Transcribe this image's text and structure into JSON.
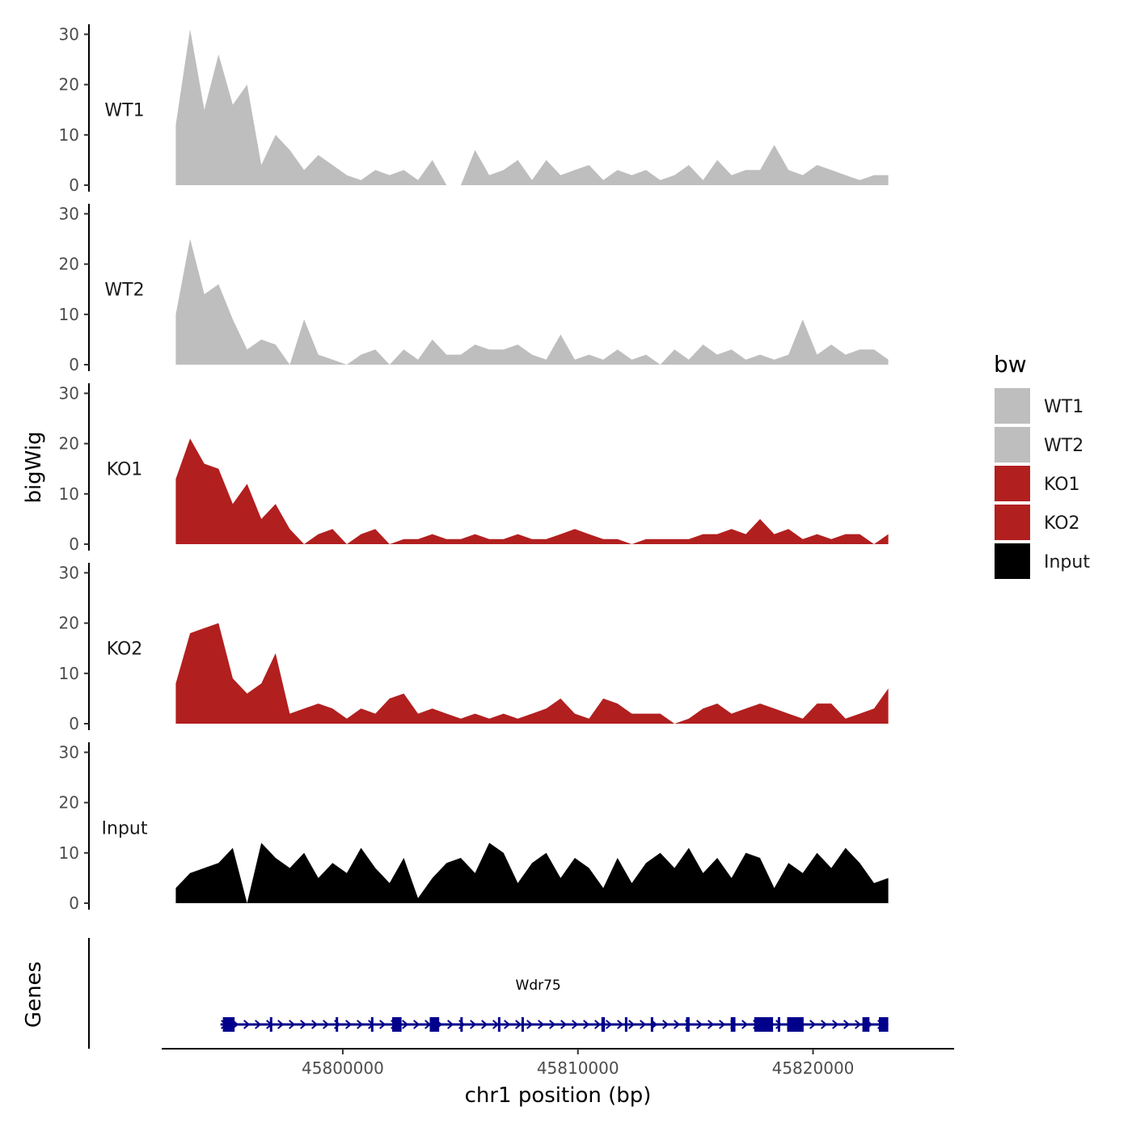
{
  "chart_data": {
    "type": "area",
    "title": "",
    "xlabel": "chr1 position (bp)",
    "ylabel": "bigWig",
    "gene_track_label": "Genes",
    "xlim": [
      45792300,
      45826000
    ],
    "data_xrange": [
      45792900,
      45823200
    ],
    "ylim": [
      0,
      32
    ],
    "y_ticks": [
      0,
      10,
      20,
      30
    ],
    "x_ticks": [
      45800000,
      45810000,
      45820000
    ],
    "x_tick_labels": [
      "45800000",
      "45810000",
      "45820000"
    ],
    "legend": {
      "title": "bw",
      "position": "right",
      "entries": [
        {
          "label": "WT1",
          "color": "#bebebe"
        },
        {
          "label": "WT2",
          "color": "#bebebe"
        },
        {
          "label": "KO1",
          "color": "#b21f1f"
        },
        {
          "label": "KO2",
          "color": "#b21f1f"
        },
        {
          "label": "Input",
          "color": "#000000"
        }
      ]
    },
    "series": [
      {
        "name": "WT1",
        "color": "#bebebe",
        "values": [
          12,
          31,
          15,
          26,
          16,
          20,
          4,
          10,
          7,
          3,
          6,
          4,
          2,
          1,
          3,
          2,
          3,
          1,
          5,
          0,
          0,
          7,
          2,
          3,
          5,
          1,
          5,
          2,
          3,
          4,
          1,
          3,
          2,
          3,
          1,
          2,
          4,
          1,
          5,
          2,
          3,
          3,
          8,
          3,
          2,
          4,
          3,
          2,
          1,
          2,
          2
        ]
      },
      {
        "name": "WT2",
        "color": "#bebebe",
        "values": [
          10,
          25,
          14,
          16,
          9,
          3,
          5,
          4,
          0,
          9,
          2,
          1,
          0,
          2,
          3,
          0,
          3,
          1,
          5,
          2,
          2,
          4,
          3,
          3,
          4,
          2,
          1,
          6,
          1,
          2,
          1,
          3,
          1,
          2,
          0,
          3,
          1,
          4,
          2,
          3,
          1,
          2,
          1,
          2,
          9,
          2,
          4,
          2,
          3,
          3,
          1
        ]
      },
      {
        "name": "KO1",
        "color": "#b21f1f",
        "values": [
          13,
          21,
          16,
          15,
          8,
          12,
          5,
          8,
          3,
          0,
          2,
          3,
          0,
          2,
          3,
          0,
          1,
          1,
          2,
          1,
          1,
          2,
          1,
          1,
          2,
          1,
          1,
          2,
          3,
          2,
          1,
          1,
          0,
          1,
          1,
          1,
          1,
          2,
          2,
          3,
          2,
          5,
          2,
          3,
          1,
          2,
          1,
          2,
          2,
          0,
          2
        ]
      },
      {
        "name": "KO2",
        "color": "#b21f1f",
        "values": [
          8,
          18,
          19,
          20,
          9,
          6,
          8,
          14,
          2,
          3,
          4,
          3,
          1,
          3,
          2,
          5,
          6,
          2,
          3,
          2,
          1,
          2,
          1,
          2,
          1,
          2,
          3,
          5,
          2,
          1,
          5,
          4,
          2,
          2,
          2,
          0,
          1,
          3,
          4,
          2,
          3,
          4,
          3,
          2,
          1,
          4,
          4,
          1,
          2,
          3,
          7
        ]
      },
      {
        "name": "Input",
        "color": "#000000",
        "values": [
          3,
          6,
          7,
          8,
          11,
          0,
          12,
          9,
          7,
          10,
          5,
          8,
          6,
          11,
          7,
          4,
          9,
          1,
          5,
          8,
          9,
          6,
          12,
          10,
          4,
          8,
          10,
          5,
          9,
          7,
          3,
          9,
          4,
          8,
          10,
          7,
          11,
          6,
          9,
          5,
          10,
          9,
          3,
          8,
          6,
          10,
          7,
          11,
          8,
          4,
          5
        ]
      }
    ],
    "gene": {
      "name": "Wdr75",
      "strand": "+",
      "start": 45794800,
      "end": 45823200,
      "color": "#00008b",
      "exons": [
        {
          "start": 45794900,
          "end": 45795400
        },
        {
          "start": 45796900,
          "end": 45797000
        },
        {
          "start": 45799700,
          "end": 45799750
        },
        {
          "start": 45801200,
          "end": 45801250
        },
        {
          "start": 45802100,
          "end": 45802500
        },
        {
          "start": 45803700,
          "end": 45804100
        },
        {
          "start": 45805000,
          "end": 45805050
        },
        {
          "start": 45806600,
          "end": 45806650
        },
        {
          "start": 45807600,
          "end": 45807650
        },
        {
          "start": 45811000,
          "end": 45811150
        },
        {
          "start": 45812000,
          "end": 45812050
        },
        {
          "start": 45813100,
          "end": 45813150
        },
        {
          "start": 45814600,
          "end": 45814750
        },
        {
          "start": 45816500,
          "end": 45816700
        },
        {
          "start": 45817500,
          "end": 45818300
        },
        {
          "start": 45818500,
          "end": 45818550
        },
        {
          "start": 45818900,
          "end": 45819600
        },
        {
          "start": 45822100,
          "end": 45822400
        },
        {
          "start": 45822800,
          "end": 45823200
        }
      ]
    }
  }
}
